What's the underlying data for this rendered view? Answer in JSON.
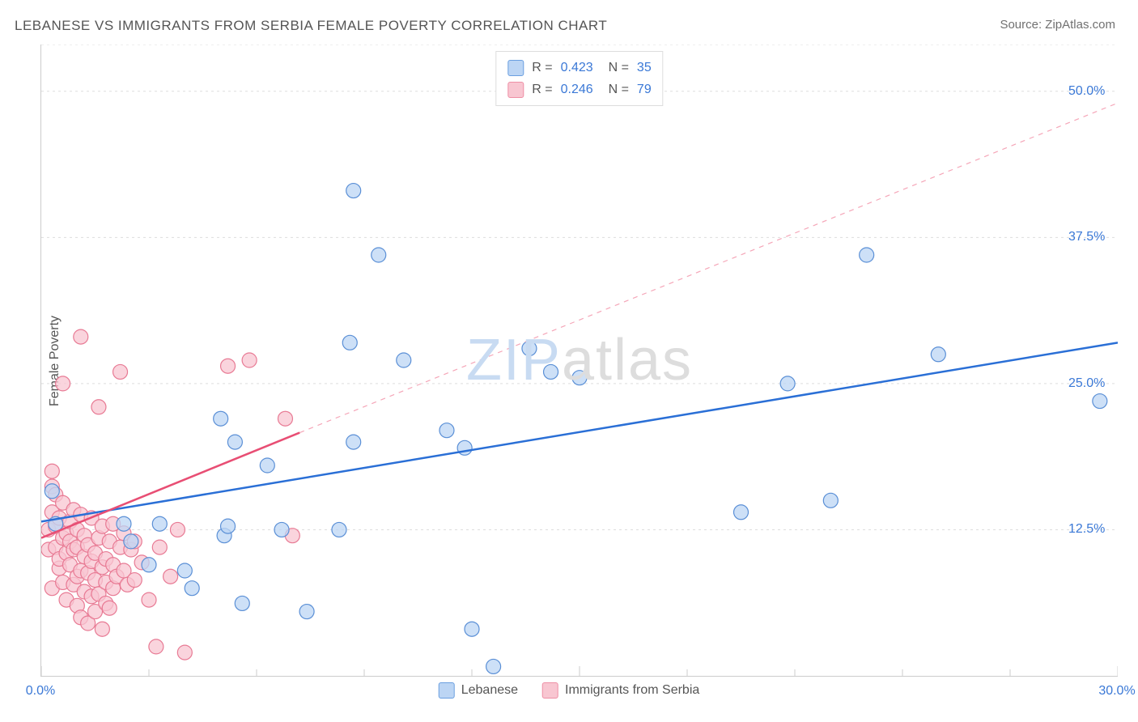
{
  "title": "LEBANESE VS IMMIGRANTS FROM SERBIA FEMALE POVERTY CORRELATION CHART",
  "source": "Source: ZipAtlas.com",
  "ylabel": "Female Poverty",
  "watermark_parts": {
    "zip": "ZIP",
    "atlas": "atlas"
  },
  "series": [
    {
      "name": "Lebanese",
      "fill": "#bcd5f4",
      "stroke": "#5a8fd6",
      "swatch_fill": "#bcd5f4",
      "swatch_stroke": "#6a9fe0",
      "R": "0.423",
      "N": "35",
      "line": {
        "x1": 0,
        "y1": 13.2,
        "x2": 30,
        "y2": 28.5,
        "color": "#2a6fd6",
        "width": 2.5,
        "dash": "none"
      },
      "dash_ext": null
    },
    {
      "name": "Immigrants from Serbia",
      "fill": "#f8c6d1",
      "stroke": "#e87a94",
      "swatch_fill": "#f8c6d1",
      "swatch_stroke": "#ee8fa5",
      "R": "0.246",
      "N": "79",
      "line": {
        "x1": 0,
        "y1": 11.8,
        "x2": 7.2,
        "y2": 20.8,
        "color": "#e84e74",
        "width": 2.5,
        "dash": "none"
      },
      "dash_ext": {
        "x1": 7.2,
        "y1": 20.8,
        "x2": 30,
        "y2": 49.0,
        "color": "#f5a6b8",
        "width": 1.2,
        "dash": "6 6"
      }
    }
  ],
  "points": {
    "lebanese": [
      [
        0.3,
        15.8
      ],
      [
        0.4,
        13.0
      ],
      [
        2.3,
        13.0
      ],
      [
        2.5,
        11.5
      ],
      [
        3.3,
        13.0
      ],
      [
        3.0,
        9.5
      ],
      [
        4.0,
        9.0
      ],
      [
        5.0,
        22.0
      ],
      [
        5.1,
        12.0
      ],
      [
        5.2,
        12.8
      ],
      [
        4.2,
        7.5
      ],
      [
        5.4,
        20.0
      ],
      [
        5.6,
        6.2
      ],
      [
        6.3,
        18.0
      ],
      [
        6.7,
        12.5
      ],
      [
        7.4,
        5.5
      ],
      [
        8.3,
        12.5
      ],
      [
        8.7,
        41.5
      ],
      [
        8.6,
        28.5
      ],
      [
        8.7,
        20.0
      ],
      [
        9.4,
        36.0
      ],
      [
        10.1,
        27.0
      ],
      [
        11.3,
        21.0
      ],
      [
        11.8,
        19.5
      ],
      [
        12.0,
        4.0
      ],
      [
        12.6,
        0.8
      ],
      [
        13.6,
        28.0
      ],
      [
        14.2,
        26.0
      ],
      [
        15.0,
        25.5
      ],
      [
        19.5,
        14.0
      ],
      [
        20.8,
        25.0
      ],
      [
        22.0,
        15.0
      ],
      [
        23.0,
        36.0
      ],
      [
        25.0,
        27.5
      ],
      [
        29.5,
        23.5
      ]
    ],
    "serbia": [
      [
        0.2,
        10.8
      ],
      [
        0.2,
        12.5
      ],
      [
        0.3,
        14.0
      ],
      [
        0.3,
        16.2
      ],
      [
        0.3,
        17.5
      ],
      [
        0.3,
        7.5
      ],
      [
        0.4,
        11.0
      ],
      [
        0.4,
        12.8
      ],
      [
        0.4,
        15.5
      ],
      [
        0.5,
        9.2
      ],
      [
        0.5,
        10.0
      ],
      [
        0.5,
        13.5
      ],
      [
        0.6,
        8.0
      ],
      [
        0.6,
        11.8
      ],
      [
        0.6,
        14.8
      ],
      [
        0.6,
        25.0
      ],
      [
        0.7,
        6.5
      ],
      [
        0.7,
        10.5
      ],
      [
        0.7,
        12.2
      ],
      [
        0.8,
        9.5
      ],
      [
        0.8,
        11.5
      ],
      [
        0.8,
        13.2
      ],
      [
        0.9,
        7.8
      ],
      [
        0.9,
        10.8
      ],
      [
        0.9,
        14.2
      ],
      [
        1.0,
        6.0
      ],
      [
        1.0,
        8.5
      ],
      [
        1.0,
        11.0
      ],
      [
        1.0,
        12.5
      ],
      [
        1.1,
        5.0
      ],
      [
        1.1,
        9.0
      ],
      [
        1.1,
        13.8
      ],
      [
        1.1,
        29.0
      ],
      [
        1.2,
        7.2
      ],
      [
        1.2,
        10.2
      ],
      [
        1.2,
        12.0
      ],
      [
        1.3,
        4.5
      ],
      [
        1.3,
        8.8
      ],
      [
        1.3,
        11.2
      ],
      [
        1.4,
        6.8
      ],
      [
        1.4,
        9.8
      ],
      [
        1.4,
        13.5
      ],
      [
        1.5,
        5.5
      ],
      [
        1.5,
        8.2
      ],
      [
        1.5,
        10.5
      ],
      [
        1.6,
        7.0
      ],
      [
        1.6,
        11.8
      ],
      [
        1.6,
        23.0
      ],
      [
        1.7,
        4.0
      ],
      [
        1.7,
        9.3
      ],
      [
        1.7,
        12.8
      ],
      [
        1.8,
        6.2
      ],
      [
        1.8,
        8.0
      ],
      [
        1.8,
        10.0
      ],
      [
        1.9,
        5.8
      ],
      [
        1.9,
        11.5
      ],
      [
        2.0,
        7.5
      ],
      [
        2.0,
        9.5
      ],
      [
        2.0,
        13.0
      ],
      [
        2.1,
        8.5
      ],
      [
        2.2,
        11.0
      ],
      [
        2.2,
        26.0
      ],
      [
        2.3,
        9.0
      ],
      [
        2.3,
        12.2
      ],
      [
        2.4,
        7.8
      ],
      [
        2.5,
        10.8
      ],
      [
        2.6,
        8.2
      ],
      [
        2.6,
        11.5
      ],
      [
        2.8,
        9.7
      ],
      [
        3.0,
        6.5
      ],
      [
        3.2,
        2.5
      ],
      [
        3.3,
        11.0
      ],
      [
        3.6,
        8.5
      ],
      [
        3.8,
        12.5
      ],
      [
        4.0,
        2.0
      ],
      [
        5.2,
        26.5
      ],
      [
        5.8,
        27.0
      ],
      [
        6.8,
        22.0
      ],
      [
        7.0,
        12.0
      ]
    ]
  },
  "marker_radius": 9,
  "axes": {
    "xlim": [
      0,
      30
    ],
    "ylim": [
      0,
      54
    ],
    "x_ticks_major": [
      0,
      15,
      30
    ],
    "x_ticks_major_labels": [
      "0.0%",
      "",
      "30.0%"
    ],
    "x_ticks_minor": [
      3,
      6,
      9,
      12,
      18,
      21,
      24,
      27
    ],
    "y_ticks_major": [
      12.5,
      25.0,
      37.5,
      50.0
    ],
    "y_ticks_major_labels": [
      "12.5%",
      "25.0%",
      "37.5%",
      "50.0%"
    ],
    "y_gridlines": [
      12.5,
      25.0,
      37.5,
      50.0,
      54
    ],
    "grid_color": "#dddddd",
    "grid_dash": "3 4",
    "tick_color": "#cccccc",
    "label_color": "#3a78d6",
    "label_fontsize": 16
  },
  "watermark_colors": {
    "zip": "#c8dbf2",
    "atlas": "#dddddd"
  },
  "background": "#ffffff"
}
